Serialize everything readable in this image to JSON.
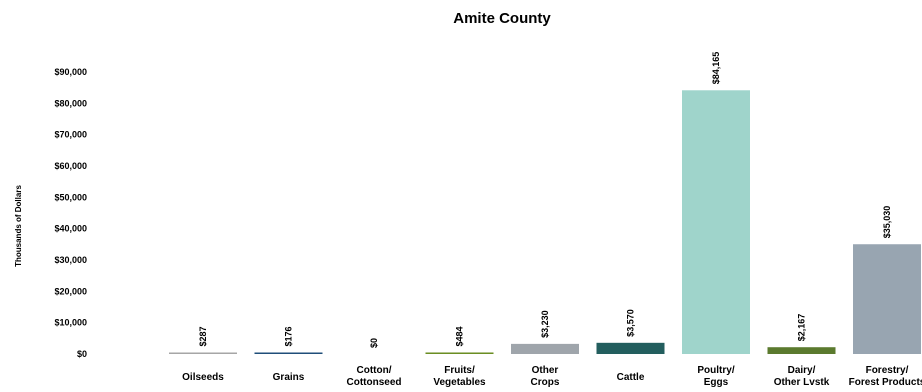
{
  "chart_data": {
    "type": "bar",
    "title": "Amite County",
    "ylabel": "Thousands of Dollars",
    "xlabel": "",
    "ylim": [
      0,
      90000
    ],
    "yticks": [
      0,
      10000,
      20000,
      30000,
      40000,
      50000,
      60000,
      70000,
      80000,
      90000
    ],
    "ytick_labels": [
      "$0",
      "$10,000",
      "$20,000",
      "$30,000",
      "$40,000",
      "$50,000",
      "$60,000",
      "$70,000",
      "$80,000",
      "$90,000"
    ],
    "grid": false,
    "legend": "none",
    "categories": [
      [
        "Oilseeds"
      ],
      [
        "Grains"
      ],
      [
        "Cotton/",
        "Cottonseed"
      ],
      [
        "Fruits/",
        "Vegetables"
      ],
      [
        "Other",
        "Crops"
      ],
      [
        "Cattle"
      ],
      [
        "Poultry/",
        "Eggs"
      ],
      [
        "Dairy/",
        "Other Lvstk"
      ],
      [
        "Forestry/",
        "Forest Products"
      ]
    ],
    "values": [
      287,
      176,
      0,
      484,
      3230,
      3570,
      84165,
      2167,
      35030
    ],
    "value_labels": [
      "$287",
      "$176",
      "$0",
      "$484",
      "$3,230",
      "$3,570",
      "$84,165",
      "$2,167",
      "$35,030"
    ],
    "colors": [
      "#a6a6a6",
      "#1f4e79",
      "#5b7a2e",
      "#6b8e23",
      "#9fa5ab",
      "#235e5e",
      "#9fd4cb",
      "#5b7a2e",
      "#98a5b1"
    ]
  }
}
